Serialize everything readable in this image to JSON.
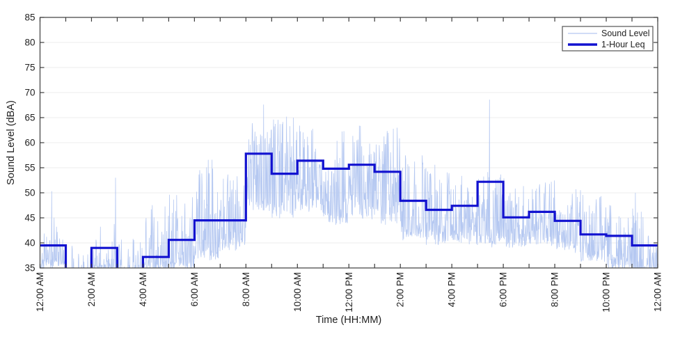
{
  "chart_data": {
    "type": "line",
    "title": "",
    "xlabel": "Time (HH:MM)",
    "ylabel": "Sound Level (dBA)",
    "ylim": [
      35,
      85
    ],
    "ytick_values": [
      35,
      40,
      45,
      50,
      55,
      60,
      65,
      70,
      75,
      80,
      85
    ],
    "x_minutes_range": [
      0,
      1440
    ],
    "xtick_labels": [
      "12:00 AM",
      "2:00 AM",
      "4:00 AM",
      "6:00 AM",
      "8:00 AM",
      "10:00 AM",
      "12:00 PM",
      "2:00 PM",
      "4:00 PM",
      "6:00 PM",
      "8:00 PM",
      "10:00 PM",
      "12:00 AM"
    ],
    "xtick_label_every_hours": 2,
    "xtick_minor_every_hours": 1,
    "xtick_label_rotation_deg": 90,
    "grid": "horizontal-only",
    "box": true,
    "tick_direction": "in",
    "legend": {
      "position": "top-right",
      "entries": [
        {
          "label": "Sound Level",
          "color": "#b5c8f1",
          "line_width": 1.2
        },
        {
          "label": "1-Hour Leq",
          "color": "#1212d0",
          "line_width": 3.5
        }
      ]
    },
    "series": [
      {
        "name": "Sound Level",
        "kind": "minute-noise",
        "color": "#b5c8f1",
        "line_width": 0.8,
        "samples": 1800,
        "seed": 1234567,
        "envelope_format": [
          "base_dBA",
          "peak_dBA",
          "spikiness_exponent"
        ],
        "envelope_per_hour": [
          [
            34.5,
            48.0,
            4.0
          ],
          [
            32.0,
            40.0,
            6.0
          ],
          [
            33.5,
            45.0,
            5.0
          ],
          [
            32.5,
            41.0,
            6.0
          ],
          [
            34.0,
            48.5,
            4.5
          ],
          [
            34.5,
            51.0,
            4.0
          ],
          [
            36.5,
            57.0,
            3.0
          ],
          [
            38.0,
            56.0,
            3.0
          ],
          [
            45.5,
            64.0,
            2.0
          ],
          [
            44.5,
            65.0,
            2.0
          ],
          [
            45.5,
            64.0,
            2.0
          ],
          [
            43.5,
            63.0,
            2.0
          ],
          [
            44.5,
            64.0,
            2.0
          ],
          [
            43.5,
            63.5,
            2.0
          ],
          [
            40.5,
            58.5,
            2.2
          ],
          [
            39.5,
            56.0,
            2.4
          ],
          [
            39.5,
            53.5,
            2.2
          ],
          [
            39.0,
            55.0,
            2.4
          ],
          [
            38.5,
            53.5,
            2.4
          ],
          [
            39.0,
            53.0,
            2.4
          ],
          [
            38.0,
            51.5,
            2.6
          ],
          [
            36.0,
            49.5,
            3.0
          ],
          [
            34.5,
            48.5,
            3.0
          ],
          [
            33.0,
            47.0,
            3.5
          ]
        ],
        "notable_spikes_minute_dBA": [
          [
            27,
            50.3
          ],
          [
            176,
            53.0
          ],
          [
            521,
            67.6
          ],
          [
            1048,
            68.6
          ],
          [
            1388,
            50.0
          ]
        ]
      },
      {
        "name": "1-Hour Leq",
        "kind": "stairs",
        "color": "#1212d0",
        "line_width": 3.2,
        "hours": [
          0,
          1,
          2,
          3,
          4,
          5,
          6,
          7,
          8,
          9,
          10,
          11,
          12,
          13,
          14,
          15,
          16,
          17,
          18,
          19,
          20,
          21,
          22,
          23
        ],
        "values_dBA": [
          39.5,
          null,
          39.0,
          null,
          37.2,
          40.6,
          44.5,
          44.5,
          57.8,
          53.8,
          56.4,
          54.8,
          55.6,
          54.2,
          48.4,
          46.6,
          47.4,
          52.2,
          45.1,
          46.2,
          44.4,
          41.7,
          41.4,
          39.5
        ],
        "note": "hours 1 and 3 are below the 35 dBA axis floor; the step line drops off the bottom of the axes (clipped)"
      }
    ],
    "colors": {
      "axis_line": "#3c3c3c",
      "tick_text": "#212121",
      "grid_line": "#ececec",
      "background": "#ffffff",
      "legend_border": "#545454"
    }
  }
}
